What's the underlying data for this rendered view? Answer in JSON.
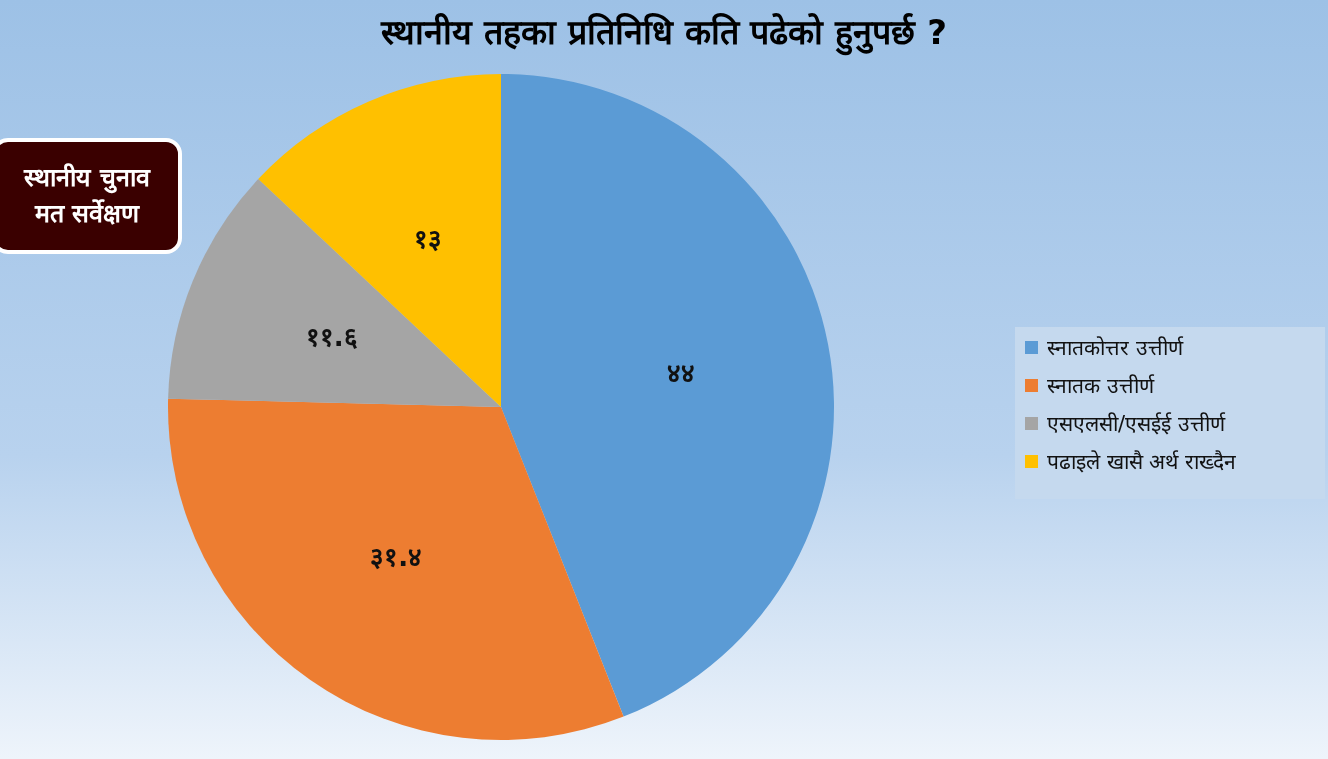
{
  "chart_data": {
    "type": "pie",
    "title": "स्थानीय तहका प्रतिनिधि कति पढेको हुनुपर्छ ?",
    "categories": [
      "स्नातकोत्तर उत्तीर्ण",
      "स्नातक उत्तीर्ण",
      "एसएलसी/एसईई उत्तीर्ण",
      "पढाइले खासै अर्थ राख्दैन"
    ],
    "values": [
      44,
      31.4,
      11.6,
      13
    ],
    "colors": [
      "#5b9bd5",
      "#ed7d31",
      "#a5a5a5",
      "#ffc000"
    ],
    "value_labels": [
      "४४",
      "३१.४",
      "११.६",
      "१३"
    ],
    "legend": "right",
    "annotations": [
      "स्थानीय चुनाव मत सर्वेक्षण"
    ]
  }
}
